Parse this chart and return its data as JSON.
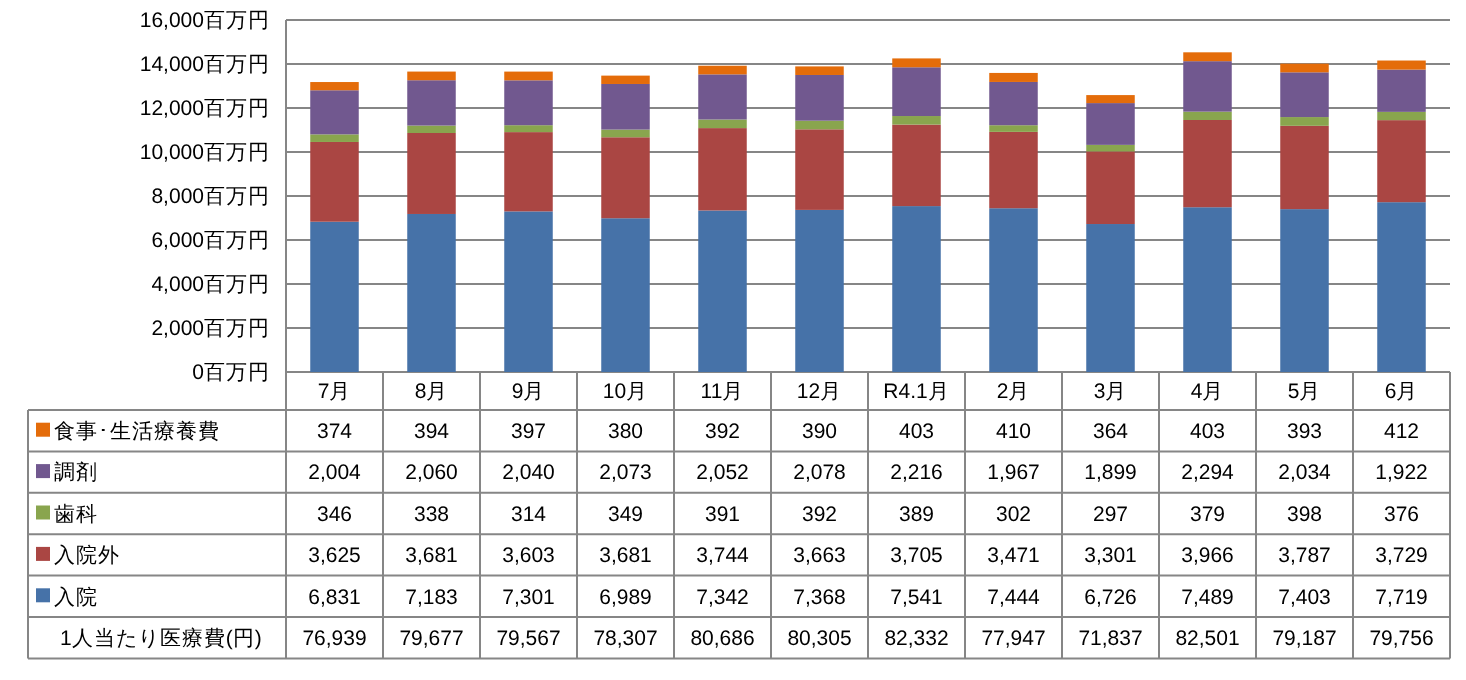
{
  "chart_data": {
    "type": "bar",
    "stacked": true,
    "grid": "y",
    "legend": "bottom",
    "categories": [
      "7月",
      "8月",
      "9月",
      "10月",
      "11月",
      "12月",
      "R4.1月",
      "2月",
      "3月",
      "4月",
      "5月",
      "6月"
    ],
    "ylim": [
      0,
      16000
    ],
    "yticks": [
      {
        "value": 0,
        "label": "0百万円"
      },
      {
        "value": 2000,
        "label": "2,000百万円"
      },
      {
        "value": 4000,
        "label": "4,000百万円"
      },
      {
        "value": 6000,
        "label": "6,000百万円"
      },
      {
        "value": 8000,
        "label": "8,000百万円"
      },
      {
        "value": 10000,
        "label": "10,000百万円"
      },
      {
        "value": 12000,
        "label": "12,000百万円"
      },
      {
        "value": 14000,
        "label": "14,000百万円"
      },
      {
        "value": 16000,
        "label": "16,000百万円"
      }
    ],
    "series": [
      {
        "name": "入院",
        "color": "#4672a8",
        "values": [
          6831,
          7183,
          7301,
          6989,
          7342,
          7368,
          7541,
          7444,
          6726,
          7489,
          7403,
          7719
        ],
        "value_labels": [
          "6,831",
          "7,183",
          "7,301",
          "6,989",
          "7,342",
          "7,368",
          "7,541",
          "7,444",
          "6,726",
          "7,489",
          "7,403",
          "7,719"
        ]
      },
      {
        "name": "入院外",
        "color": "#aa4643",
        "values": [
          3625,
          3681,
          3603,
          3681,
          3744,
          3663,
          3705,
          3471,
          3301,
          3966,
          3787,
          3729
        ],
        "value_labels": [
          "3,625",
          "3,681",
          "3,603",
          "3,681",
          "3,744",
          "3,663",
          "3,705",
          "3,471",
          "3,301",
          "3,966",
          "3,787",
          "3,729"
        ]
      },
      {
        "name": "歯科",
        "color": "#89a54e",
        "values": [
          346,
          338,
          314,
          349,
          391,
          392,
          389,
          302,
          297,
          379,
          398,
          376
        ],
        "value_labels": [
          "346",
          "338",
          "314",
          "349",
          "391",
          "392",
          "389",
          "302",
          "297",
          "379",
          "398",
          "376"
        ]
      },
      {
        "name": "調剤",
        "color": "#71588f",
        "values": [
          2004,
          2060,
          2040,
          2073,
          2052,
          2078,
          2216,
          1967,
          1899,
          2294,
          2034,
          1922
        ],
        "value_labels": [
          "2,004",
          "2,060",
          "2,040",
          "2,073",
          "2,052",
          "2,078",
          "2,216",
          "1,967",
          "1,899",
          "2,294",
          "2,034",
          "1,922"
        ]
      },
      {
        "name": "食事･生活療養費",
        "color": "#e46c0a",
        "values": [
          374,
          394,
          397,
          380,
          392,
          390,
          403,
          410,
          364,
          403,
          393,
          412
        ],
        "value_labels": [
          "374",
          "394",
          "397",
          "380",
          "392",
          "390",
          "403",
          "410",
          "364",
          "403",
          "393",
          "412"
        ]
      }
    ],
    "annotations": [
      "1人当たり医療費(円)",
      "76,939",
      "79,677",
      "79,567",
      "78,307",
      "80,686",
      "80,305",
      "82,332",
      "77,947",
      "71,837",
      "82,501",
      "79,187",
      "79,756"
    ]
  }
}
